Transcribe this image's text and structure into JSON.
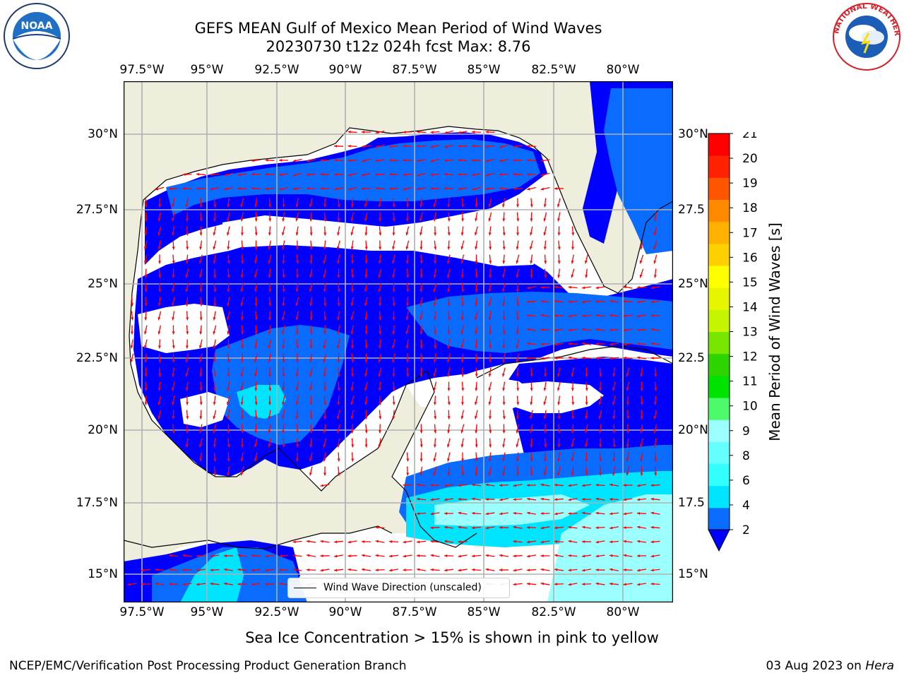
{
  "title_line1": "GEFS MEAN Gulf of Mexico Mean Period of Wind Waves",
  "title_line2": "20230730 t12z 024h fcst   Max: 8.76",
  "lon_labels": [
    "97.5°W",
    "95°W",
    "92.5°W",
    "90°W",
    "87.5°W",
    "85°W",
    "82.5°W",
    "80°W"
  ],
  "lat_labels_left": [
    "30°N",
    "27.5°N",
    "25°N",
    "22.5°N",
    "20°N",
    "17.5°N",
    "15°N"
  ],
  "lat_labels_right": [
    "30°N",
    "27.5",
    "25°N",
    "22.5",
    "20°N",
    "17.5",
    "15°N"
  ],
  "colorbar": {
    "title": "Mean Period of Wind Waves [s]",
    "ticks": [
      "2",
      "4",
      "6",
      "8",
      "9",
      "10",
      "11",
      "12",
      "13",
      "14",
      "15",
      "16",
      "17",
      "18",
      "19",
      "20",
      "21"
    ],
    "colors": [
      "#0a6cff",
      "#00e5ff",
      "#33ffff",
      "#66ffff",
      "#9cffff",
      "#4dfa6a",
      "#00e200",
      "#2ed400",
      "#78e600",
      "#c6f500",
      "#e8f500",
      "#ffff00",
      "#ffd000",
      "#ffb000",
      "#ff8a00",
      "#ff5500",
      "#ff2200",
      "#ff0000"
    ],
    "extend_color": "#0000ff"
  },
  "legend_label": "Wind Wave Direction (unscaled)",
  "bottom_note": "Sea Ice Concentration > 15% is shown in pink to yellow",
  "footer_left": "NCEP/EMC/Verification Post Processing Product Generation Branch",
  "footer_right_date": "03 Aug 2023 on ",
  "footer_right_host": "Hera",
  "logos": {
    "left": "NOAA",
    "right": "NATIONAL WEATHER SERVICE"
  },
  "map_colors": {
    "land": "#efeddc",
    "coast": "#000000",
    "grid": "#b0b0b0",
    "arrow": "#ff0000"
  }
}
